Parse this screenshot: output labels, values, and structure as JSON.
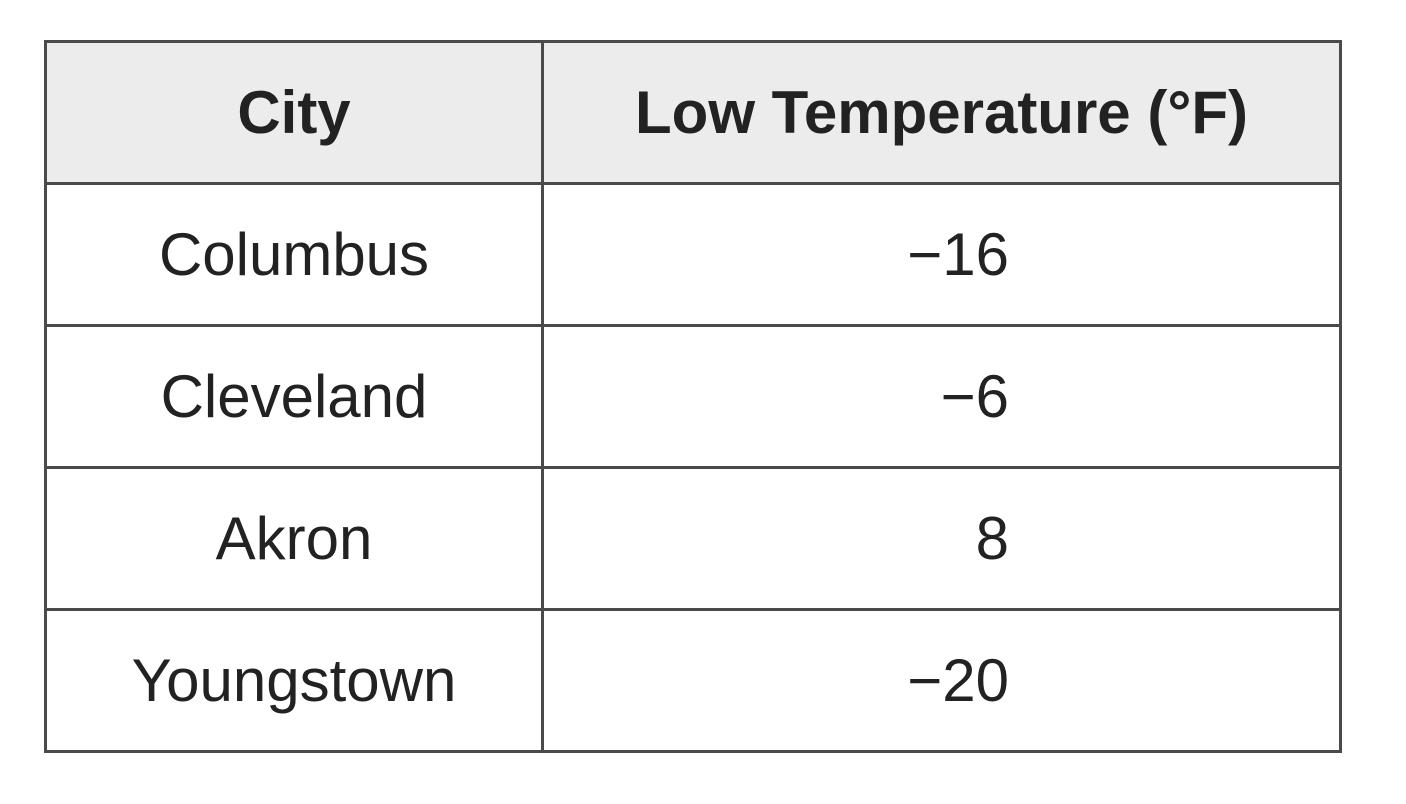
{
  "table": {
    "header": [
      "City",
      "Low Temperature (°F)"
    ],
    "rows": [
      [
        "Columbus",
        "−16"
      ],
      [
        "Cleveland",
        "−6"
      ],
      [
        "Akron",
        "8"
      ],
      [
        "Youngstown",
        "−20"
      ]
    ]
  }
}
